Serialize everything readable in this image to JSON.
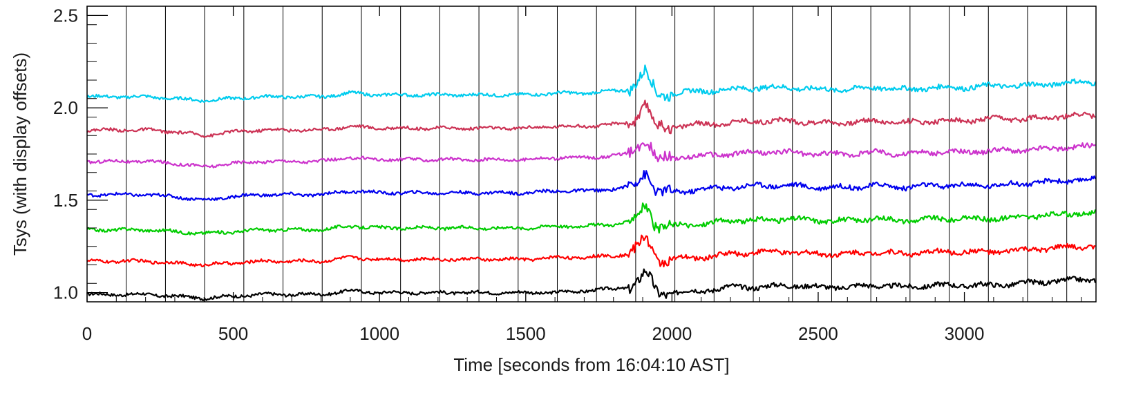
{
  "chart_data": {
    "type": "line",
    "title": "",
    "xlabel": "Time [seconds from 16:04:10 AST]",
    "ylabel": "Tsys (with display offsets)",
    "xlim": [
      0,
      3450
    ],
    "ylim": [
      0.95,
      2.55
    ],
    "x_ticks": [
      0,
      500,
      1000,
      1500,
      2000,
      2500,
      3000
    ],
    "x_tick_labels": [
      "0",
      "500",
      "1000",
      "1500",
      "2000",
      "2500",
      "3000"
    ],
    "y_ticks": [
      1.0,
      1.5,
      2.0,
      2.5
    ],
    "y_tick_labels": [
      "1.0",
      "1.5",
      "2.0",
      "2.5"
    ],
    "grid": false,
    "legend": "none",
    "vertical_markers": [
      134,
      268,
      402,
      536,
      670,
      804,
      938,
      1072,
      1206,
      1340,
      1474,
      1608,
      1742,
      1876,
      2010,
      2144,
      2278,
      2412,
      2546,
      2680,
      2814,
      2948,
      3082,
      3216,
      3350
    ],
    "x": [
      0,
      100,
      200,
      300,
      400,
      500,
      600,
      700,
      800,
      900,
      1000,
      1100,
      1200,
      1300,
      1400,
      1500,
      1600,
      1700,
      1800,
      1850,
      1880,
      1910,
      1930,
      1950,
      2000,
      2100,
      2200,
      2300,
      2400,
      2500,
      2600,
      2700,
      2800,
      2900,
      3000,
      3100,
      3200,
      3300,
      3400,
      3450
    ],
    "series": [
      {
        "color": "#000000",
        "values": [
          0.99,
          0.99,
          0.99,
          0.98,
          0.97,
          0.98,
          0.99,
          0.99,
          0.99,
          1.01,
          1.0,
          1.0,
          1.0,
          1.0,
          1.0,
          1.0,
          1.0,
          1.01,
          1.02,
          1.03,
          1.05,
          1.11,
          1.06,
          1.0,
          1.0,
          1.01,
          1.03,
          1.03,
          1.04,
          1.03,
          1.03,
          1.04,
          1.03,
          1.04,
          1.04,
          1.04,
          1.05,
          1.06,
          1.07,
          1.07
        ]
      },
      {
        "color": "#ff0000",
        "values": [
          1.17,
          1.17,
          1.17,
          1.16,
          1.15,
          1.16,
          1.17,
          1.17,
          1.17,
          1.19,
          1.18,
          1.18,
          1.18,
          1.18,
          1.18,
          1.18,
          1.19,
          1.19,
          1.2,
          1.21,
          1.24,
          1.3,
          1.24,
          1.18,
          1.18,
          1.19,
          1.21,
          1.22,
          1.22,
          1.21,
          1.21,
          1.22,
          1.21,
          1.22,
          1.22,
          1.22,
          1.23,
          1.24,
          1.25,
          1.25
        ]
      },
      {
        "color": "#00cc00",
        "values": [
          1.34,
          1.34,
          1.34,
          1.33,
          1.32,
          1.33,
          1.34,
          1.34,
          1.34,
          1.36,
          1.35,
          1.35,
          1.35,
          1.35,
          1.35,
          1.35,
          1.36,
          1.36,
          1.37,
          1.38,
          1.41,
          1.48,
          1.41,
          1.35,
          1.36,
          1.37,
          1.39,
          1.39,
          1.4,
          1.39,
          1.39,
          1.4,
          1.39,
          1.4,
          1.4,
          1.4,
          1.41,
          1.42,
          1.43,
          1.43
        ]
      },
      {
        "color": "#0000ee",
        "values": [
          1.53,
          1.53,
          1.53,
          1.52,
          1.5,
          1.52,
          1.53,
          1.53,
          1.53,
          1.55,
          1.54,
          1.54,
          1.54,
          1.54,
          1.54,
          1.54,
          1.55,
          1.55,
          1.56,
          1.57,
          1.6,
          1.66,
          1.6,
          1.54,
          1.54,
          1.56,
          1.57,
          1.58,
          1.58,
          1.57,
          1.57,
          1.58,
          1.57,
          1.58,
          1.58,
          1.58,
          1.59,
          1.6,
          1.61,
          1.61
        ]
      },
      {
        "color": "#cc33cc",
        "values": [
          1.71,
          1.71,
          1.71,
          1.7,
          1.68,
          1.7,
          1.71,
          1.71,
          1.71,
          1.73,
          1.72,
          1.72,
          1.72,
          1.72,
          1.72,
          1.72,
          1.73,
          1.73,
          1.74,
          1.75,
          1.78,
          1.84,
          1.78,
          1.72,
          1.73,
          1.74,
          1.75,
          1.76,
          1.76,
          1.75,
          1.75,
          1.76,
          1.75,
          1.76,
          1.76,
          1.77,
          1.77,
          1.78,
          1.79,
          1.79
        ]
      },
      {
        "color": "#cc3355",
        "values": [
          1.88,
          1.88,
          1.88,
          1.87,
          1.85,
          1.87,
          1.88,
          1.88,
          1.88,
          1.9,
          1.89,
          1.89,
          1.89,
          1.89,
          1.89,
          1.89,
          1.9,
          1.9,
          1.91,
          1.92,
          1.95,
          2.02,
          1.95,
          1.89,
          1.9,
          1.91,
          1.92,
          1.93,
          1.93,
          1.92,
          1.92,
          1.93,
          1.92,
          1.93,
          1.93,
          1.94,
          1.94,
          1.95,
          1.96,
          1.96
        ]
      },
      {
        "color": "#00ccee",
        "values": [
          2.06,
          2.06,
          2.06,
          2.05,
          2.04,
          2.05,
          2.06,
          2.06,
          2.06,
          2.08,
          2.07,
          2.07,
          2.07,
          2.07,
          2.07,
          2.07,
          2.08,
          2.08,
          2.09,
          2.1,
          2.14,
          2.2,
          2.13,
          2.07,
          2.08,
          2.09,
          2.1,
          2.11,
          2.11,
          2.1,
          2.1,
          2.11,
          2.1,
          2.11,
          2.11,
          2.12,
          2.12,
          2.13,
          2.14,
          2.14
        ]
      }
    ]
  }
}
